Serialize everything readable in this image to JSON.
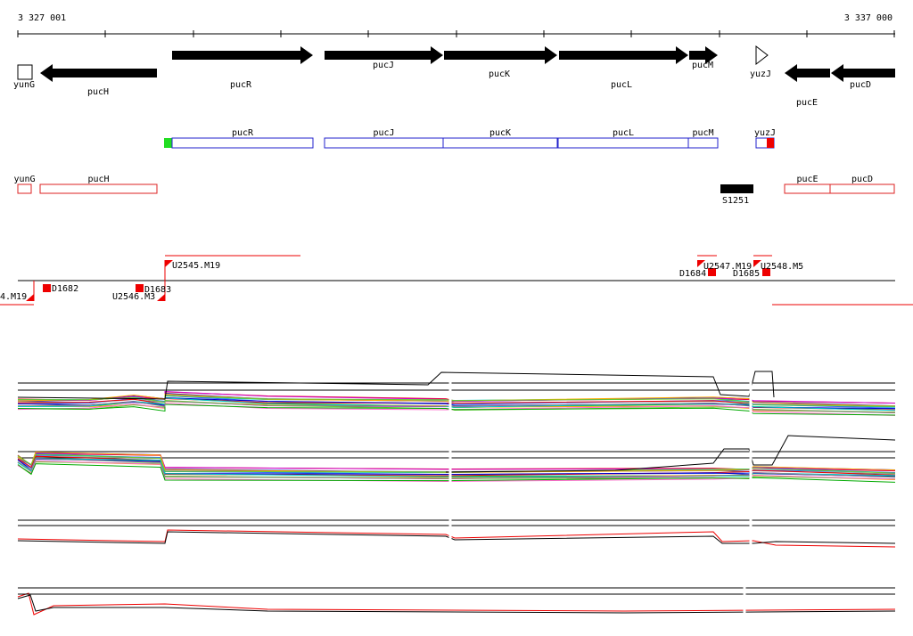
{
  "ruler": {
    "start": "3 327 001",
    "end": "3 337 000"
  },
  "genes": [
    "yunG",
    "pucH",
    "pucR",
    "pucJ",
    "pucK",
    "pucL",
    "pucM",
    "yuzJ",
    "pucE",
    "pucD"
  ],
  "forward_features": [
    "pucR",
    "pucJ",
    "pucK",
    "pucL",
    "pucM",
    "yuzJ"
  ],
  "reverse_features": [
    "yunG",
    "pucH",
    "pucE",
    "pucD",
    "S1251"
  ],
  "segments": [
    "U2545.M19",
    "D1682",
    "D1683",
    "U2546.M3",
    "4.M19",
    "D1684",
    "U2547.M19",
    "D1685",
    "U2548.M5"
  ]
}
